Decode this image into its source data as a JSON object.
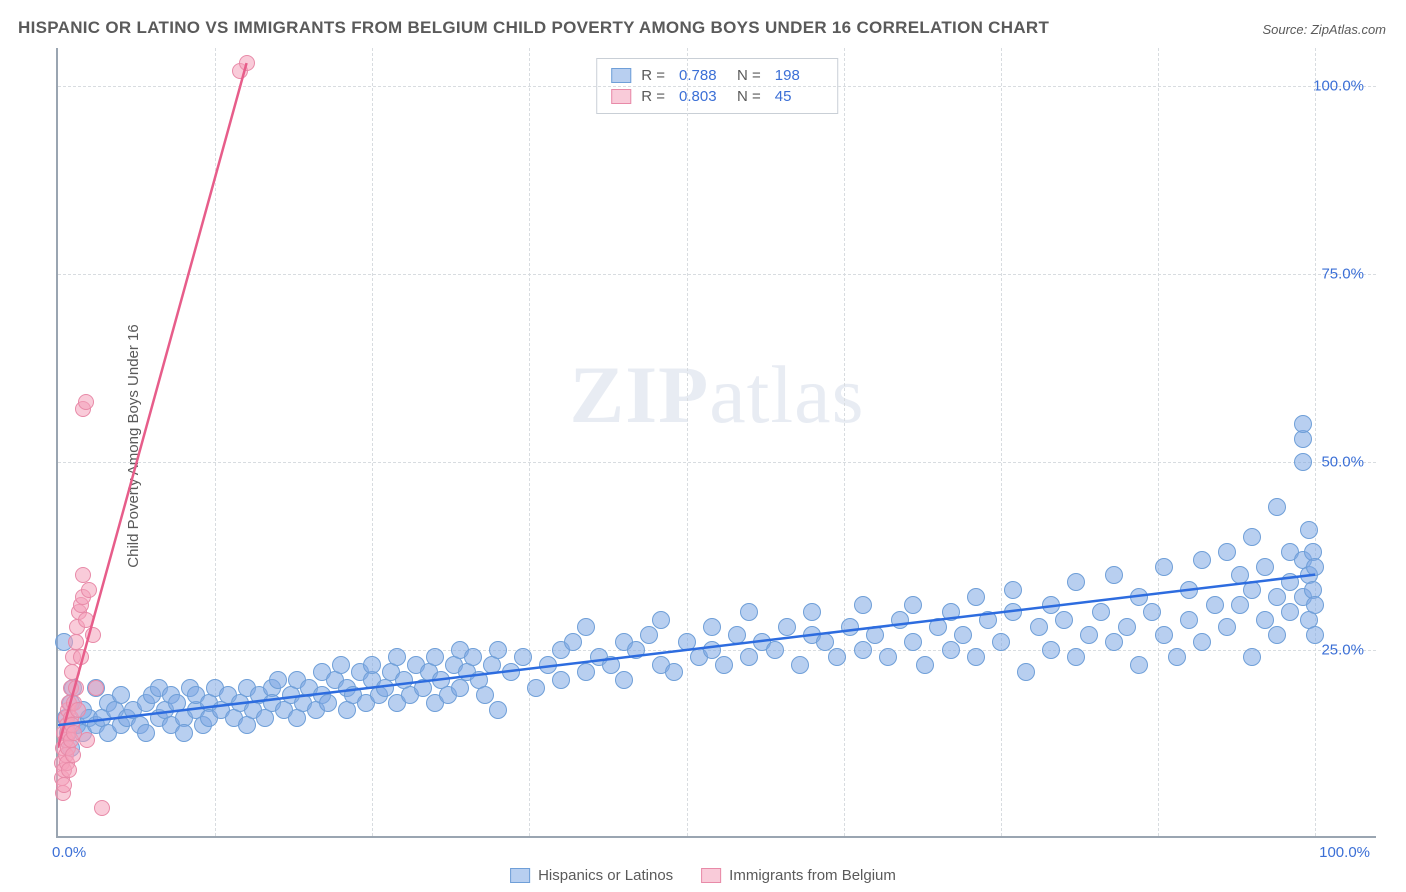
{
  "title": "HISPANIC OR LATINO VS IMMIGRANTS FROM BELGIUM CHILD POVERTY AMONG BOYS UNDER 16 CORRELATION CHART",
  "source": "Source: ZipAtlas.com",
  "y_axis_label": "Child Poverty Among Boys Under 16",
  "watermark_a": "ZIP",
  "watermark_b": "atlas",
  "chart": {
    "type": "scatter",
    "xlim": [
      0,
      105
    ],
    "ylim": [
      0,
      105
    ],
    "x_ticks": [
      0,
      100
    ],
    "x_tick_labels": [
      "0.0%",
      "100.0%"
    ],
    "y_ticks": [
      25,
      50,
      75,
      100
    ],
    "y_tick_labels": [
      "25.0%",
      "50.0%",
      "75.0%",
      "100.0%"
    ],
    "x_gridlines": [
      12.5,
      25,
      37.5,
      50,
      62.5,
      75,
      87.5,
      100
    ],
    "grid_color": "#d8dce0",
    "axis_color": "#9aa5b1",
    "background_color": "#ffffff",
    "marker_radius": 9,
    "series": {
      "hispanic": {
        "label": "Hispanics or Latinos",
        "color_fill": "rgba(125,168,227,0.55)",
        "color_stroke": "#6f9fd8",
        "trend_color": "#2d6cdf",
        "R": "0.788",
        "N": "198",
        "trend": {
          "x1": 0,
          "y1": 15,
          "x2": 100,
          "y2": 35
        },
        "points": [
          [
            0.5,
            26
          ],
          [
            0.6,
            16
          ],
          [
            0.8,
            14
          ],
          [
            1,
            12
          ],
          [
            1,
            18
          ],
          [
            1.2,
            20
          ],
          [
            1.5,
            15
          ],
          [
            2,
            14
          ],
          [
            2,
            17
          ],
          [
            2.5,
            16
          ],
          [
            3,
            15
          ],
          [
            3,
            20
          ],
          [
            3.5,
            16
          ],
          [
            4,
            14
          ],
          [
            4,
            18
          ],
          [
            4.5,
            17
          ],
          [
            5,
            15
          ],
          [
            5,
            19
          ],
          [
            5.5,
            16
          ],
          [
            6,
            17
          ],
          [
            6.5,
            15
          ],
          [
            7,
            18
          ],
          [
            7,
            14
          ],
          [
            7.5,
            19
          ],
          [
            8,
            16
          ],
          [
            8,
            20
          ],
          [
            8.5,
            17
          ],
          [
            9,
            15
          ],
          [
            9,
            19
          ],
          [
            9.5,
            18
          ],
          [
            10,
            16
          ],
          [
            10,
            14
          ],
          [
            10.5,
            20
          ],
          [
            11,
            17
          ],
          [
            11,
            19
          ],
          [
            11.5,
            15
          ],
          [
            12,
            18
          ],
          [
            12,
            16
          ],
          [
            12.5,
            20
          ],
          [
            13,
            17
          ],
          [
            13.5,
            19
          ],
          [
            14,
            16
          ],
          [
            14.5,
            18
          ],
          [
            15,
            20
          ],
          [
            15,
            15
          ],
          [
            15.5,
            17
          ],
          [
            16,
            19
          ],
          [
            16.5,
            16
          ],
          [
            17,
            20
          ],
          [
            17,
            18
          ],
          [
            17.5,
            21
          ],
          [
            18,
            17
          ],
          [
            18.5,
            19
          ],
          [
            19,
            16
          ],
          [
            19,
            21
          ],
          [
            19.5,
            18
          ],
          [
            20,
            20
          ],
          [
            20.5,
            17
          ],
          [
            21,
            22
          ],
          [
            21,
            19
          ],
          [
            21.5,
            18
          ],
          [
            22,
            21
          ],
          [
            22.5,
            23
          ],
          [
            23,
            17
          ],
          [
            23,
            20
          ],
          [
            23.5,
            19
          ],
          [
            24,
            22
          ],
          [
            24.5,
            18
          ],
          [
            25,
            21
          ],
          [
            25,
            23
          ],
          [
            25.5,
            19
          ],
          [
            26,
            20
          ],
          [
            26.5,
            22
          ],
          [
            27,
            18
          ],
          [
            27,
            24
          ],
          [
            27.5,
            21
          ],
          [
            28,
            19
          ],
          [
            28.5,
            23
          ],
          [
            29,
            20
          ],
          [
            29.5,
            22
          ],
          [
            30,
            24
          ],
          [
            30,
            18
          ],
          [
            30.5,
            21
          ],
          [
            31,
            19
          ],
          [
            31.5,
            23
          ],
          [
            32,
            25
          ],
          [
            32,
            20
          ],
          [
            32.5,
            22
          ],
          [
            33,
            24
          ],
          [
            33.5,
            21
          ],
          [
            34,
            19
          ],
          [
            34.5,
            23
          ],
          [
            35,
            25
          ],
          [
            35,
            17
          ],
          [
            36,
            22
          ],
          [
            37,
            24
          ],
          [
            38,
            20
          ],
          [
            39,
            23
          ],
          [
            40,
            25
          ],
          [
            40,
            21
          ],
          [
            41,
            26
          ],
          [
            42,
            28
          ],
          [
            42,
            22
          ],
          [
            43,
            24
          ],
          [
            44,
            23
          ],
          [
            45,
            26
          ],
          [
            45,
            21
          ],
          [
            46,
            25
          ],
          [
            47,
            27
          ],
          [
            48,
            23
          ],
          [
            48,
            29
          ],
          [
            49,
            22
          ],
          [
            50,
            26
          ],
          [
            51,
            24
          ],
          [
            52,
            28
          ],
          [
            52,
            25
          ],
          [
            53,
            23
          ],
          [
            54,
            27
          ],
          [
            55,
            30
          ],
          [
            55,
            24
          ],
          [
            56,
            26
          ],
          [
            57,
            25
          ],
          [
            58,
            28
          ],
          [
            59,
            23
          ],
          [
            60,
            27
          ],
          [
            60,
            30
          ],
          [
            61,
            26
          ],
          [
            62,
            24
          ],
          [
            63,
            28
          ],
          [
            64,
            31
          ],
          [
            64,
            25
          ],
          [
            65,
            27
          ],
          [
            66,
            24
          ],
          [
            67,
            29
          ],
          [
            68,
            26
          ],
          [
            68,
            31
          ],
          [
            69,
            23
          ],
          [
            70,
            28
          ],
          [
            71,
            30
          ],
          [
            71,
            25
          ],
          [
            72,
            27
          ],
          [
            73,
            32
          ],
          [
            73,
            24
          ],
          [
            74,
            29
          ],
          [
            75,
            26
          ],
          [
            76,
            30
          ],
          [
            76,
            33
          ],
          [
            77,
            22
          ],
          [
            78,
            28
          ],
          [
            79,
            31
          ],
          [
            79,
            25
          ],
          [
            80,
            29
          ],
          [
            81,
            34
          ],
          [
            81,
            24
          ],
          [
            82,
            27
          ],
          [
            83,
            30
          ],
          [
            84,
            35
          ],
          [
            84,
            26
          ],
          [
            85,
            28
          ],
          [
            86,
            32
          ],
          [
            86,
            23
          ],
          [
            87,
            30
          ],
          [
            88,
            36
          ],
          [
            88,
            27
          ],
          [
            89,
            24
          ],
          [
            90,
            33
          ],
          [
            90,
            29
          ],
          [
            91,
            37
          ],
          [
            91,
            26
          ],
          [
            92,
            31
          ],
          [
            93,
            28
          ],
          [
            93,
            38
          ],
          [
            94,
            35
          ],
          [
            94,
            31
          ],
          [
            95,
            40
          ],
          [
            95,
            24
          ],
          [
            95,
            33
          ],
          [
            96,
            29
          ],
          [
            96,
            36
          ],
          [
            97,
            44
          ],
          [
            97,
            32
          ],
          [
            97,
            27
          ],
          [
            98,
            38
          ],
          [
            98,
            34
          ],
          [
            98,
            30
          ],
          [
            99,
            53
          ],
          [
            99,
            55
          ],
          [
            99,
            50
          ],
          [
            99,
            37
          ],
          [
            99,
            32
          ],
          [
            99.5,
            41
          ],
          [
            99.5,
            35
          ],
          [
            99.5,
            29
          ],
          [
            99.8,
            38
          ],
          [
            99.8,
            33
          ],
          [
            100,
            36
          ],
          [
            100,
            31
          ],
          [
            100,
            27
          ]
        ]
      },
      "belgium": {
        "label": "Immigrants from Belgium",
        "color_fill": "rgba(244,160,186,0.55)",
        "color_stroke": "#e88aa8",
        "trend_color": "#e75d8a",
        "R": "0.803",
        "N": "45",
        "trend": {
          "x1": 0,
          "y1": 12,
          "x2": 15,
          "y2": 103
        },
        "points": [
          [
            0.3,
            8
          ],
          [
            0.3,
            10
          ],
          [
            0.4,
            6
          ],
          [
            0.4,
            12
          ],
          [
            0.5,
            9
          ],
          [
            0.5,
            14
          ],
          [
            0.5,
            7
          ],
          [
            0.6,
            11
          ],
          [
            0.6,
            13
          ],
          [
            0.6,
            16
          ],
          [
            0.7,
            10
          ],
          [
            0.7,
            15
          ],
          [
            0.8,
            12
          ],
          [
            0.8,
            17
          ],
          [
            0.8,
            14
          ],
          [
            0.9,
            9
          ],
          [
            0.9,
            18
          ],
          [
            1.0,
            13
          ],
          [
            1.0,
            20
          ],
          [
            1.0,
            16
          ],
          [
            1.1,
            22
          ],
          [
            1.1,
            15
          ],
          [
            1.2,
            11
          ],
          [
            1.2,
            24
          ],
          [
            1.3,
            18
          ],
          [
            1.3,
            14
          ],
          [
            1.4,
            26
          ],
          [
            1.4,
            20
          ],
          [
            1.5,
            28
          ],
          [
            1.6,
            17
          ],
          [
            1.7,
            30
          ],
          [
            1.8,
            31
          ],
          [
            1.8,
            24
          ],
          [
            2.0,
            32
          ],
          [
            2.0,
            35
          ],
          [
            2.2,
            29
          ],
          [
            2.3,
            13
          ],
          [
            2.5,
            33
          ],
          [
            2.8,
            27
          ],
          [
            3.0,
            20
          ],
          [
            3.5,
            4
          ],
          [
            2.0,
            57
          ],
          [
            2.2,
            58
          ],
          [
            14.5,
            102
          ],
          [
            15.0,
            103
          ]
        ]
      }
    }
  },
  "legend_top": {
    "r_label": "R  =",
    "n_label": "N  ="
  }
}
